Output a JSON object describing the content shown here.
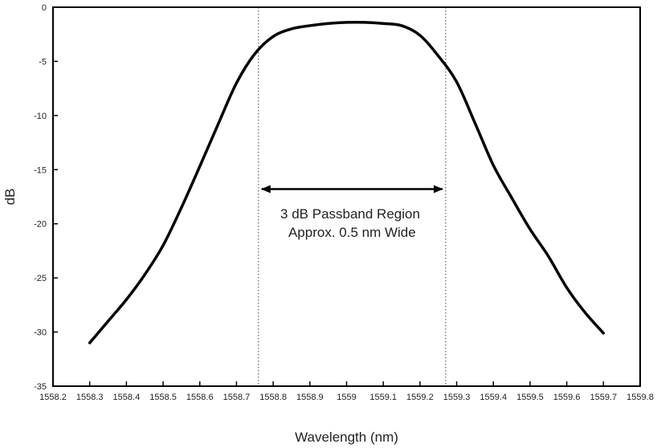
{
  "chart_data": {
    "type": "line",
    "title": "",
    "xlabel": "Wavelength (nm)",
    "ylabel": "dB",
    "xlim": [
      1558.2,
      1559.8
    ],
    "ylim": [
      -35,
      0
    ],
    "x_ticks": [
      "1558.2",
      "1558.3",
      "1558.4",
      "1558.5",
      "1558.6",
      "1558.7",
      "1558.8",
      "1558.9",
      "1559",
      "1559.1",
      "1559.2",
      "1559.3",
      "1559.4",
      "1559.5",
      "1559.6",
      "1559.7",
      "1559.8"
    ],
    "y_ticks": [
      "0",
      "-5",
      "-10",
      "-15",
      "-20",
      "-25",
      "-30",
      "-35"
    ],
    "grid": false,
    "series": [
      {
        "color": "#000000",
        "x": [
          1558.3,
          1558.35,
          1558.4,
          1558.45,
          1558.5,
          1558.55,
          1558.6,
          1558.65,
          1558.7,
          1558.75,
          1558.8,
          1558.85,
          1558.9,
          1558.95,
          1559.0,
          1559.05,
          1559.1,
          1559.15,
          1559.2,
          1559.25,
          1559.3,
          1559.35,
          1559.4,
          1559.45,
          1559.5,
          1559.55,
          1559.6,
          1559.65,
          1559.7
        ],
        "values": [
          -31.0,
          -29.0,
          -27.0,
          -24.7,
          -22.0,
          -18.5,
          -14.7,
          -10.8,
          -7.0,
          -4.3,
          -2.7,
          -2.0,
          -1.7,
          -1.5,
          -1.4,
          -1.4,
          -1.5,
          -1.7,
          -2.6,
          -4.5,
          -6.9,
          -10.7,
          -14.6,
          -17.6,
          -20.5,
          -23.0,
          -25.9,
          -28.2,
          -30.1
        ]
      }
    ],
    "markers": [
      {
        "type": "vline",
        "x": 1558.76,
        "style": "dotted"
      },
      {
        "type": "vline",
        "x": 1559.27,
        "style": "dotted"
      }
    ],
    "annotations": [
      {
        "arrow": "double",
        "x_from": 1558.76,
        "x_to": 1559.27,
        "y": -16.8
      },
      {
        "text_lines": [
          "3 dB Passband Region",
          "Approx. 0.5 nm Wide"
        ],
        "x": 1559.015,
        "y": -19.5
      }
    ]
  }
}
